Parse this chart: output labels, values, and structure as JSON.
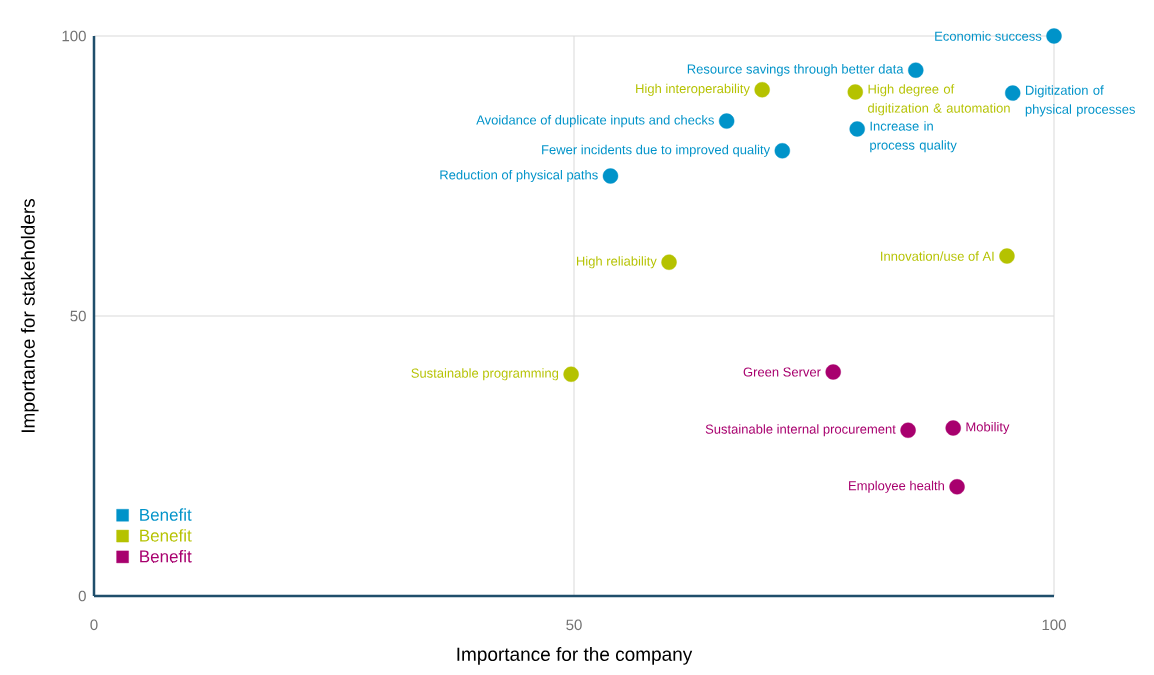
{
  "chart_data": {
    "type": "scatter",
    "xlabel": "Importance for the company",
    "ylabel": "Importance for stakeholders",
    "xlim": [
      0,
      100
    ],
    "ylim": [
      0,
      100
    ],
    "xticks": [
      0,
      50,
      100
    ],
    "yticks": [
      0,
      50,
      100
    ],
    "grid": true,
    "legend": "bottom left",
    "series": [
      {
        "name": "Benefit",
        "color": "#0093c9",
        "x": [
          100,
          85.6,
          95.7,
          65.9,
          79.5,
          71.7,
          53.8
        ],
        "values": [
          100,
          93.9,
          89.8,
          84.8,
          83.4,
          79.5,
          75
        ]
      },
      {
        "name": "Benefit",
        "color": "#b5c200",
        "x": [
          69.6,
          79.3,
          59.9,
          95.1,
          49.7
        ],
        "values": [
          90.4,
          90,
          59.6,
          60.7,
          39.6
        ]
      },
      {
        "name": "Benefit",
        "color": "#a8006e",
        "x": [
          77,
          84.8,
          89.5,
          89.9
        ],
        "values": [
          40,
          29.6,
          30,
          19.5
        ]
      }
    ],
    "annotations": [
      {
        "text": "Economic success",
        "x": 100,
        "y": 100
      },
      {
        "text": "Resource savings through better data",
        "x": 85.6,
        "y": 93.9
      },
      {
        "text": "Digitization of physical processes",
        "x": 95.7,
        "y": 89.8
      },
      {
        "text": "Avoidance of duplicate inputs and checks",
        "x": 65.9,
        "y": 84.8
      },
      {
        "text": "Increase in process quality",
        "x": 79.5,
        "y": 83.4
      },
      {
        "text": "Fewer incidents due to improved quality",
        "x": 71.7,
        "y": 79.5
      },
      {
        "text": "Reduction of physical paths",
        "x": 53.8,
        "y": 75
      },
      {
        "text": "High interoperability",
        "x": 69.6,
        "y": 90.4
      },
      {
        "text": "High degree of digitization & automation",
        "x": 79.3,
        "y": 90
      },
      {
        "text": "High reliability",
        "x": 59.9,
        "y": 59.6
      },
      {
        "text": "Innovation/use of AI",
        "x": 95.1,
        "y": 60.7
      },
      {
        "text": "Sustainable programming",
        "x": 49.7,
        "y": 39.6
      },
      {
        "text": "Green Server",
        "x": 77,
        "y": 40
      },
      {
        "text": "Sustainable internal procurement",
        "x": 84.8,
        "y": 29.6
      },
      {
        "text": "Mobility",
        "x": 89.5,
        "y": 30
      },
      {
        "text": "Employee health",
        "x": 89.9,
        "y": 19.5
      }
    ]
  }
}
